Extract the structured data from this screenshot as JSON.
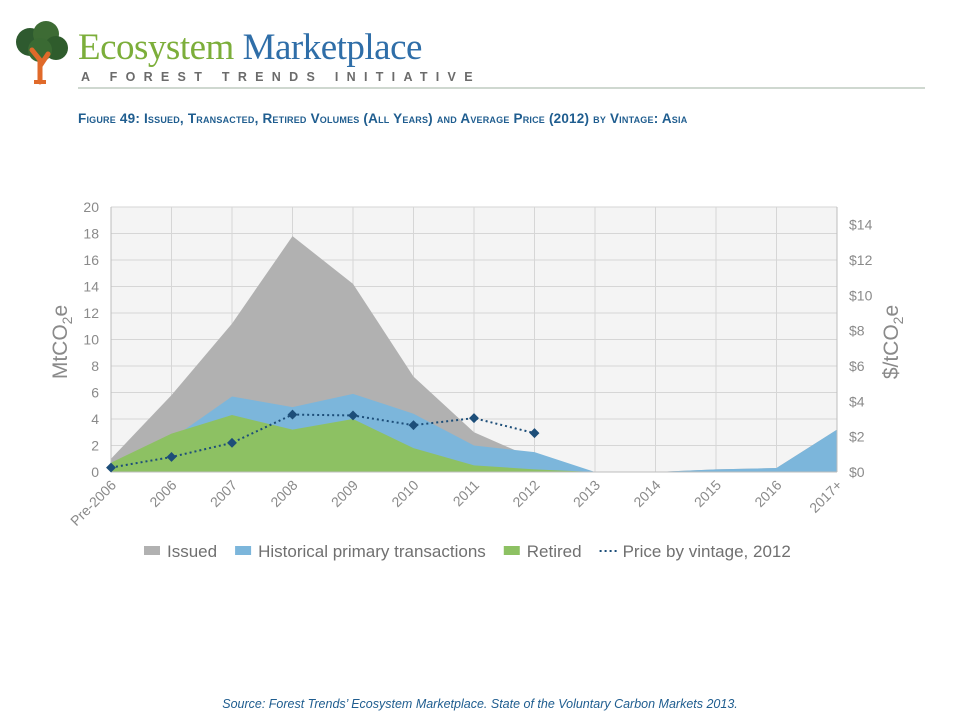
{
  "header": {
    "brand_part1": "Ecosystem",
    "brand_part2": "Marketplace",
    "tagline": "A FOREST TRENDS INITIATIVE",
    "colors": {
      "brand_green": "#7cae3a",
      "brand_blue": "#2f6ea8",
      "title_blue": "#1f5d8f"
    },
    "logo_icon": "tree-logo-icon"
  },
  "figure_title": "Figure 49: Issued, Transacted, Retired Volumes (All Years) and Average Price (2012) by Vintage: Asia",
  "source": "Source: Forest Trends’ Ecosystem Marketplace. State of the Voluntary Carbon Markets 2013.",
  "chart_data": {
    "type": "area",
    "categories": [
      "Pre-2006",
      "2006",
      "2007",
      "2008",
      "2009",
      "2010",
      "2011",
      "2012",
      "2013",
      "2014",
      "2015",
      "2016",
      "2017+"
    ],
    "ylabel": "MtCO2e",
    "y2label": "$/tCO2e",
    "ylim": [
      0,
      20
    ],
    "y2lim": [
      0,
      15
    ],
    "yticks": [
      "0",
      "2",
      "4",
      "6",
      "8",
      "10",
      "12",
      "14",
      "16",
      "18",
      "20"
    ],
    "y2ticks": [
      "$0",
      "$2",
      "$4",
      "$6",
      "$8",
      "$10",
      "$12",
      "$14"
    ],
    "grid": true,
    "legend_position": "bottom",
    "series": [
      {
        "name": "Issued",
        "kind": "area",
        "axis": "left",
        "color": "#b1b1b1",
        "values": [
          1.0,
          5.8,
          11.2,
          17.8,
          14.2,
          7.2,
          3.0,
          1.0,
          0,
          0,
          0.2,
          0.3,
          3.2
        ]
      },
      {
        "name": "Historical primary transactions",
        "kind": "area",
        "axis": "left",
        "color": "#7cb6db",
        "values": [
          0.5,
          2.5,
          5.7,
          4.9,
          5.9,
          4.4,
          2.0,
          1.5,
          0,
          0,
          0.2,
          0.3,
          3.2
        ]
      },
      {
        "name": "Retired",
        "kind": "area",
        "axis": "left",
        "color": "#8dc163",
        "values": [
          0.7,
          2.9,
          4.3,
          3.2,
          4.0,
          1.8,
          0.5,
          0.2,
          0,
          0,
          0,
          0,
          0
        ]
      },
      {
        "name": "Price by vintage, 2012",
        "kind": "line",
        "axis": "right",
        "color": "#1d4e79",
        "values": [
          0.25,
          0.85,
          1.65,
          3.25,
          3.2,
          2.65,
          3.05,
          2.2,
          null,
          null,
          null,
          null,
          null
        ]
      }
    ]
  }
}
